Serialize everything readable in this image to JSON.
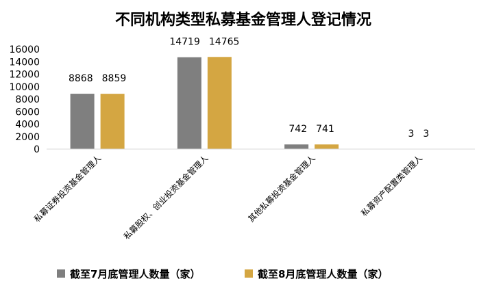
{
  "chart_data": {
    "type": "bar",
    "title": "不同机构类型私募基金管理人登记情况",
    "xlabel": "",
    "ylabel": "",
    "categories": [
      "私募证券投资基金管理人",
      "私募股权、创业投资基金管理人",
      "其他私募投资基金管理人",
      "私募资产配置类管理人"
    ],
    "series": [
      {
        "name": "截至7月底管理人数量（家）",
        "values": [
          8868,
          14719,
          742,
          3
        ]
      },
      {
        "name": "截至8月底管理人数量（家）",
        "values": [
          8859,
          14765,
          741,
          3
        ]
      }
    ],
    "data_labels": [
      [
        "8868",
        "14719",
        "742",
        "3"
      ],
      [
        "8859",
        "14765",
        "741",
        "3"
      ]
    ],
    "ylim": [
      0,
      16000
    ],
    "yticks": [
      "0",
      "2000",
      "4000",
      "6000",
      "8000",
      "10000",
      "12000",
      "14000",
      "16000"
    ],
    "grid": false,
    "legend_position": "bottom",
    "colors": [
      "#7f7f7f",
      "#d4a642"
    ]
  }
}
